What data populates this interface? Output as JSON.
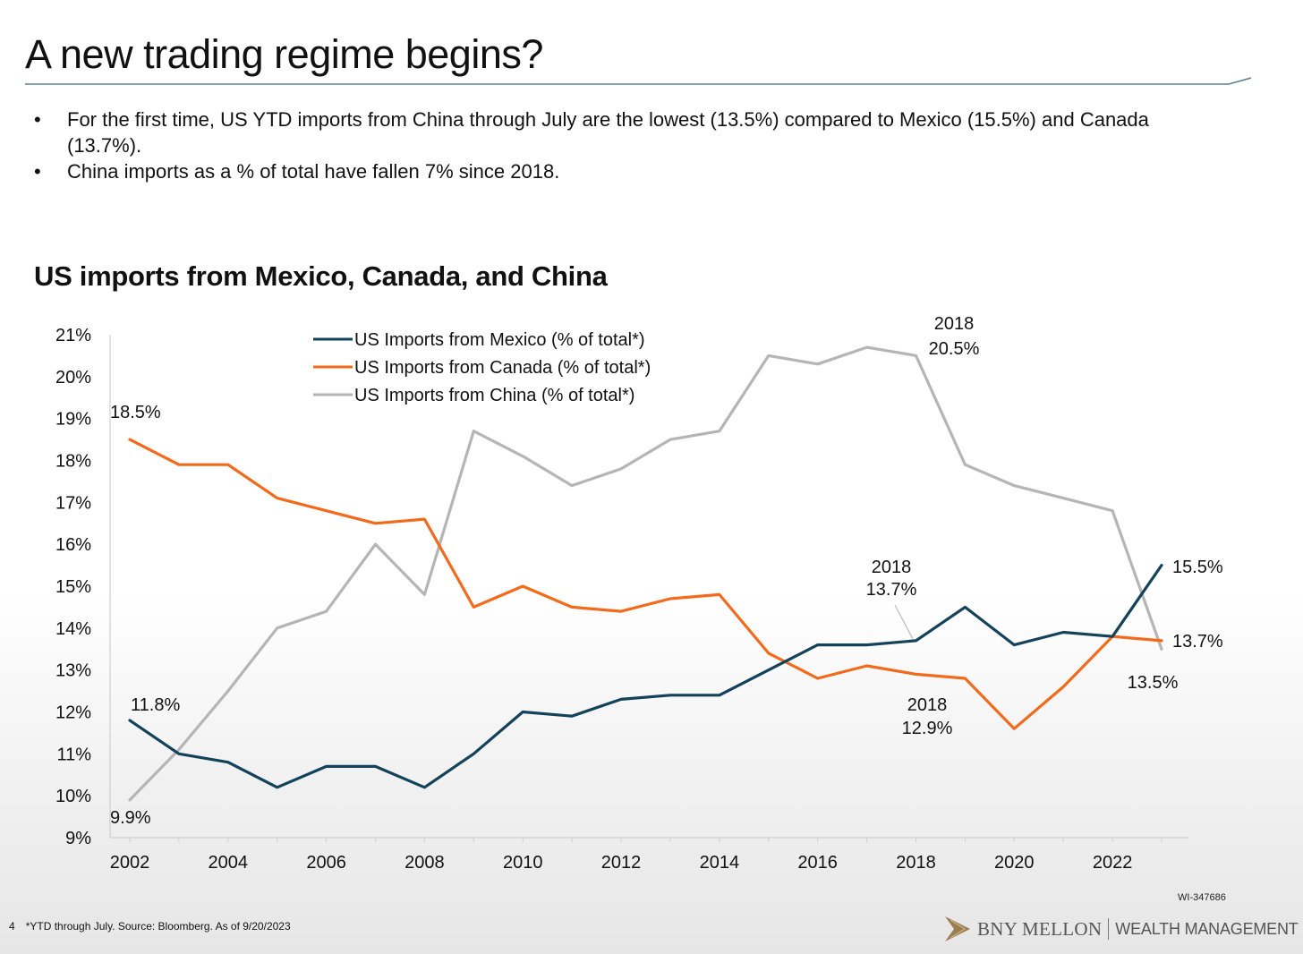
{
  "slide": {
    "title": "A new trading regime begins?",
    "bullets": [
      "For the first time, US YTD imports from China through July are the lowest (13.5%) compared to Mexico (15.5%) and Canada (13.7%).",
      "China imports as a % of total have fallen 7% since 2018."
    ],
    "chart_heading": "US imports from Mexico, Canada, and China",
    "footnote": "*YTD through July. Source: Bloomberg. As of 9/20/2023",
    "page_number": "4",
    "document_id": "WI-347686",
    "brand": {
      "name": "BNY MELLON",
      "division": "WEALTH MANAGEMENT",
      "logo_icon": "chevron-arrow-icon",
      "logo_color": "#9b7d4f"
    }
  },
  "chart_data": {
    "type": "line",
    "title": "US imports from Mexico, Canada, and China",
    "xlabel": "",
    "ylabel": "",
    "x": [
      2002,
      2003,
      2004,
      2005,
      2006,
      2007,
      2008,
      2009,
      2010,
      2011,
      2012,
      2013,
      2014,
      2015,
      2016,
      2017,
      2018,
      2019,
      2020,
      2021,
      2022,
      2023
    ],
    "x_ticks": [
      "2002",
      "2004",
      "2006",
      "2008",
      "2010",
      "2012",
      "2014",
      "2016",
      "2018",
      "2020",
      "2022"
    ],
    "x_tick_values": [
      2002,
      2004,
      2006,
      2008,
      2010,
      2012,
      2014,
      2016,
      2018,
      2020,
      2022
    ],
    "y_ticks": [
      "21%",
      "20%",
      "19%",
      "18%",
      "17%",
      "16%",
      "15%",
      "14%",
      "13%",
      "12%",
      "11%",
      "10%",
      "9%"
    ],
    "y_tick_values": [
      21,
      20,
      19,
      18,
      17,
      16,
      15,
      14,
      13,
      12,
      11,
      10,
      9
    ],
    "ylim": [
      9,
      21
    ],
    "xlim": [
      2002,
      2023
    ],
    "grid": false,
    "legend_position": "top-center",
    "series": [
      {
        "name": "US Imports from Mexico (% of total*)",
        "color": "#14425a",
        "values": [
          11.8,
          11.0,
          10.8,
          10.2,
          10.7,
          10.7,
          10.2,
          11.0,
          12.0,
          11.9,
          12.3,
          12.4,
          12.4,
          13.0,
          13.6,
          13.6,
          13.7,
          14.5,
          13.6,
          13.9,
          13.8,
          15.5
        ]
      },
      {
        "name": "US Imports from Canada (% of total*)",
        "color": "#f26a1b",
        "values": [
          18.5,
          17.9,
          17.9,
          17.1,
          16.8,
          16.5,
          16.6,
          14.5,
          15.0,
          14.5,
          14.4,
          14.7,
          14.8,
          13.4,
          12.8,
          13.1,
          12.9,
          12.8,
          11.6,
          12.6,
          13.8,
          13.7
        ]
      },
      {
        "name": "US Imports from China (% of total*)",
        "color": "#b5b5b5",
        "values": [
          9.9,
          11.1,
          12.5,
          14.0,
          14.4,
          16.0,
          14.8,
          18.7,
          18.1,
          17.4,
          17.8,
          18.5,
          18.7,
          20.5,
          20.3,
          20.7,
          20.5,
          17.9,
          17.4,
          17.1,
          16.8,
          13.5
        ]
      }
    ],
    "annotations": [
      {
        "text": "18.5%",
        "x": 2002,
        "y": 18.5
      },
      {
        "text": "11.8%",
        "x": 2002,
        "y": 11.8
      },
      {
        "text": "9.9%",
        "x": 2002,
        "y": 9.9
      },
      {
        "text": "2018",
        "text2": "20.5%",
        "x": 2018,
        "y": 20.5
      },
      {
        "text": "2018",
        "text2": "13.7%",
        "x": 2018,
        "y": 13.7
      },
      {
        "text": "2018",
        "text2": "12.9%",
        "x": 2018,
        "y": 12.9
      },
      {
        "text": "15.5%",
        "x": 2023,
        "y": 15.5
      },
      {
        "text": "13.7%",
        "x": 2023,
        "y": 13.7
      },
      {
        "text": "13.5%",
        "x": 2023,
        "y": 13.5
      }
    ]
  }
}
